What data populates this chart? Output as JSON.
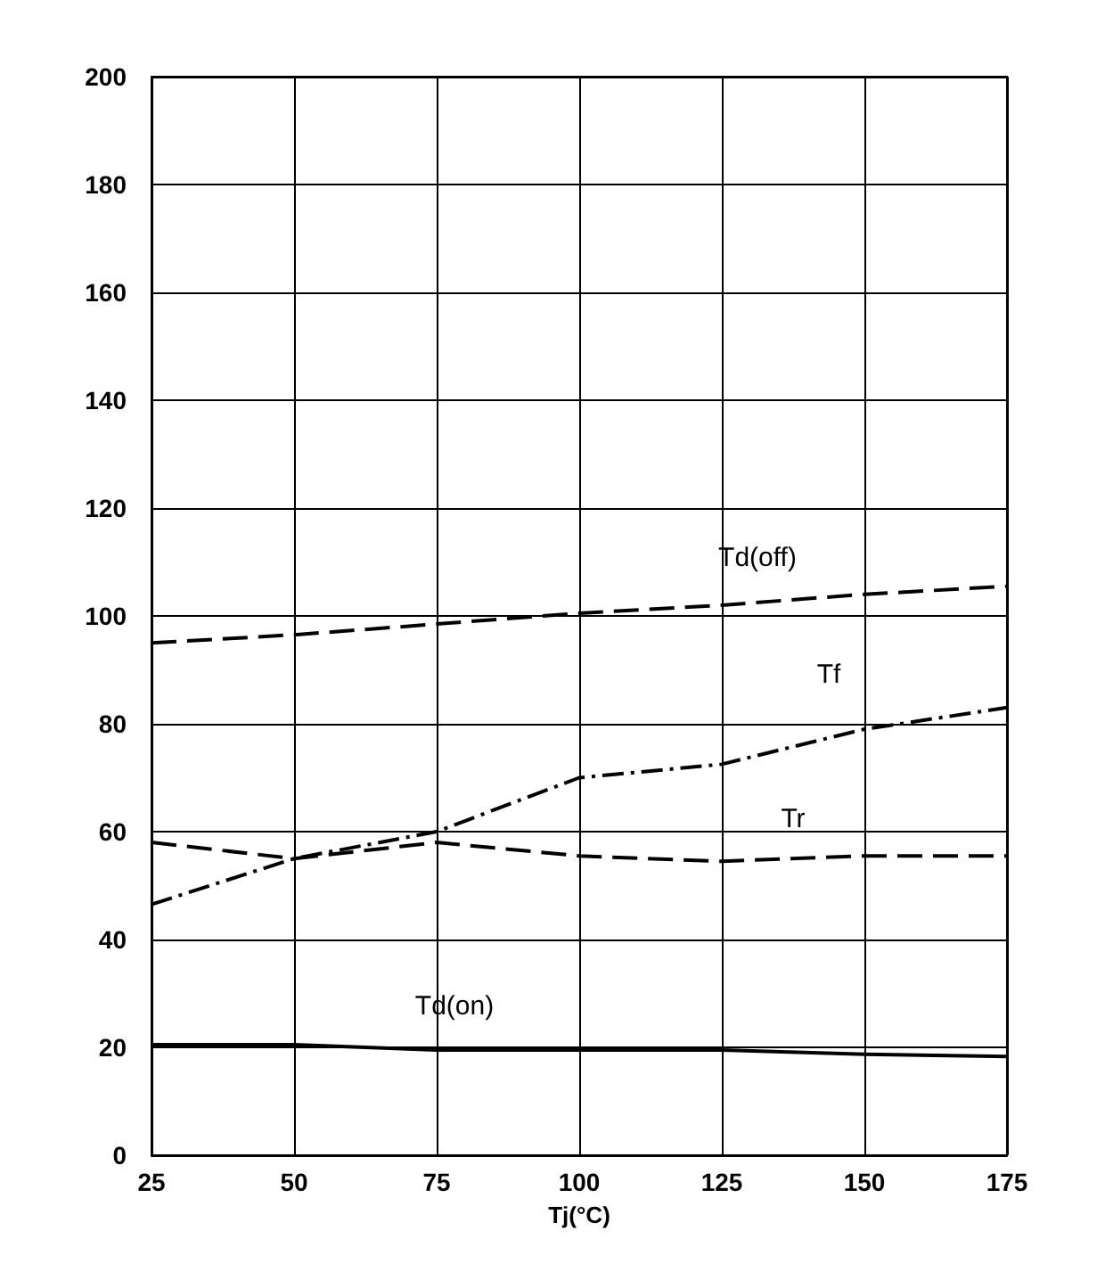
{
  "chart_data": {
    "type": "line",
    "xlabel": "Tj(°C)",
    "x": [
      25,
      50,
      75,
      100,
      125,
      150,
      175
    ],
    "series": [
      {
        "name": "Td(off)",
        "color": "#000000",
        "line_style": "dashed",
        "values": [
          95,
          96.5,
          98.5,
          100.5,
          102,
          104,
          105.5
        ]
      },
      {
        "name": "Tf",
        "color": "#000000",
        "line_style": "dashdot",
        "values": [
          46.5,
          55,
          60,
          70,
          72.5,
          79,
          83
        ]
      },
      {
        "name": "Tr",
        "color": "#000000",
        "line_style": "dashed",
        "values": [
          58,
          55,
          58,
          55.5,
          54.5,
          55.5,
          55.5
        ]
      },
      {
        "name": "Td(on)",
        "color": "#000000",
        "line_style": "solid",
        "values": [
          20.5,
          20.5,
          19.5,
          19.5,
          19.5,
          18.7,
          18.3
        ]
      }
    ],
    "xlim": [
      25,
      175
    ],
    "xticks": [
      25,
      50,
      75,
      100,
      125,
      150,
      175
    ],
    "ylim": [
      0,
      200
    ],
    "yticks": [
      0,
      20,
      40,
      60,
      80,
      100,
      120,
      140,
      160,
      180,
      200
    ],
    "grid": true,
    "marker": "none"
  }
}
